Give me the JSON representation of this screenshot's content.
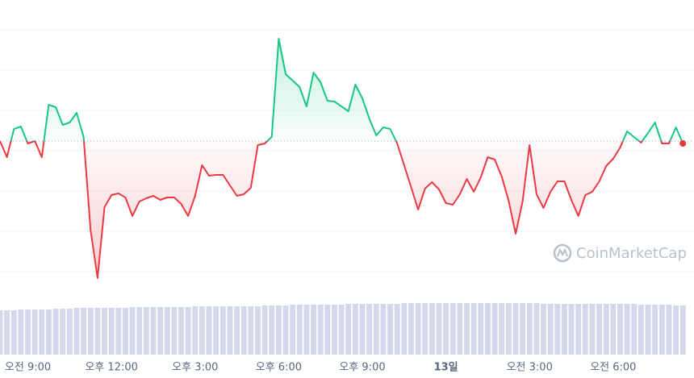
{
  "chart_data": {
    "type": "line",
    "watermark": "CoinMarketCap",
    "x": [
      8,
      8.25,
      8.5,
      8.75,
      9,
      9.25,
      9.5,
      9.75,
      10,
      10.25,
      10.5,
      10.75,
      11,
      11.25,
      11.5,
      11.75,
      12,
      12.25,
      12.5,
      12.75,
      13,
      13.25,
      13.5,
      13.75,
      14,
      14.25,
      14.5,
      14.75,
      15,
      15.25,
      15.5,
      15.75,
      16,
      16.25,
      16.5,
      16.75,
      17,
      17.25,
      17.5,
      17.75,
      18,
      18.25,
      18.5,
      18.75,
      19,
      19.25,
      19.5,
      19.75,
      20,
      20.25,
      20.5,
      20.75,
      21,
      21.25,
      21.5,
      21.75,
      22,
      22.25,
      22.5,
      22.75,
      23,
      23.25,
      23.5,
      23.75,
      24,
      24.25,
      24.5,
      24.75,
      25,
      25.25,
      25.5,
      25.75,
      26,
      26.25,
      26.5,
      26.75,
      27,
      27.25,
      27.5,
      27.75,
      28,
      28.25,
      28.5,
      28.75,
      29,
      29.25,
      29.5,
      29.75,
      30,
      30.25,
      30.5,
      30.75,
      31,
      31.25,
      31.5,
      31.75,
      32,
      32.25,
      32.5
    ],
    "xlim": [
      8,
      32.9
    ],
    "xticks": [
      {
        "value": 9,
        "label": "오전 9:00"
      },
      {
        "value": 12,
        "label": "오후 12:00"
      },
      {
        "value": 15,
        "label": "오후 3:00"
      },
      {
        "value": 18,
        "label": "오후 6:00"
      },
      {
        "value": 21,
        "label": "오후 9:00"
      },
      {
        "value": 24,
        "label": "13일"
      },
      {
        "value": 27,
        "label": "오전 3:00"
      },
      {
        "value": 30,
        "label": "오전 6:00"
      }
    ],
    "ylim": [
      -30,
      300
    ],
    "yticks": [
      0,
      50,
      100,
      150,
      200,
      250,
      300
    ],
    "grid": true,
    "baseline": 162,
    "y2lim": [
      0,
      100
    ],
    "series": [
      {
        "name": "Price",
        "up_color": "#16c784",
        "down_color": "#ea3943",
        "values": [
          162,
          142,
          177,
          180,
          159,
          162,
          142,
          207,
          204,
          182,
          185,
          197,
          167,
          52,
          -8,
          80,
          95,
          97,
          92,
          69,
          87,
          91,
          94,
          89,
          92,
          92,
          84,
          69,
          94,
          132,
          119,
          120,
          120,
          107,
          94,
          96,
          104,
          157,
          159,
          167,
          289,
          245,
          237,
          229,
          205,
          247,
          235,
          212,
          211,
          205,
          199,
          232,
          215,
          190,
          169,
          179,
          177,
          159,
          132,
          105,
          77,
          103,
          111,
          102,
          85,
          83,
          96,
          115,
          99,
          117,
          142,
          139,
          118,
          88,
          47,
          87,
          157,
          96,
          79,
          99,
          112,
          112,
          89,
          69,
          95,
          99,
          112,
          131,
          140,
          154,
          174,
          167,
          160,
          172,
          185,
          159,
          159,
          179,
          159
        ]
      },
      {
        "name": "Volume",
        "axis": "y2",
        "color": "#d3d8ea",
        "values": [
          55,
          55,
          55,
          56,
          56,
          56,
          56,
          56,
          57,
          57,
          57,
          58,
          58,
          58,
          58,
          58,
          58,
          58,
          58,
          59,
          59,
          59,
          59,
          59,
          59,
          59,
          59,
          59,
          60,
          60,
          60,
          60,
          60,
          60,
          60,
          60,
          60,
          60,
          61,
          61,
          61,
          61,
          62,
          62,
          62,
          62,
          62,
          62,
          62,
          62,
          63,
          63,
          63,
          63,
          63,
          63,
          63,
          63,
          64,
          64,
          64,
          64,
          64,
          64,
          64,
          64,
          64,
          64,
          64,
          64,
          64,
          64,
          64,
          64,
          64,
          64,
          64,
          64,
          63,
          63,
          63,
          63,
          63,
          63,
          63,
          63,
          63,
          63,
          63,
          63,
          63,
          63,
          62,
          62,
          62,
          62,
          62,
          61,
          61
        ]
      }
    ]
  }
}
